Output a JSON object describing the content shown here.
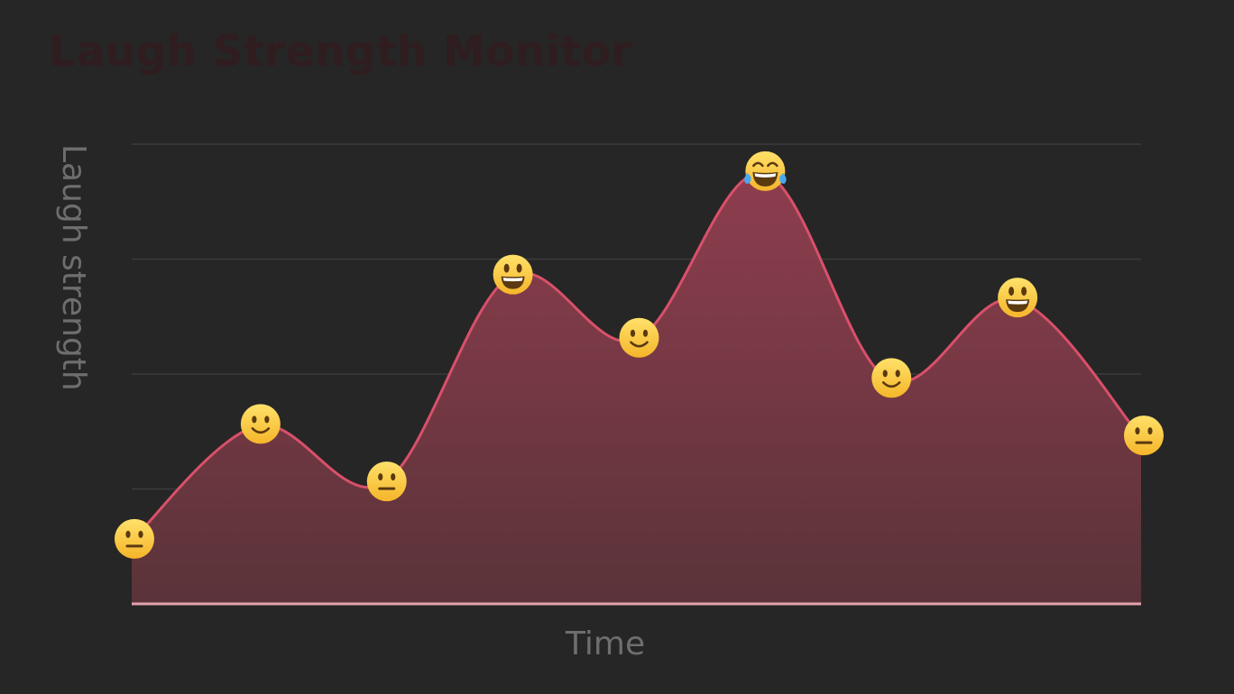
{
  "chart_data": {
    "type": "area",
    "title": "Laugh Strength Monitor",
    "xlabel": "Time",
    "ylabel": "Laugh strength",
    "ylim": [
      0,
      4
    ],
    "grid": true,
    "x": [
      0,
      1,
      2,
      3,
      4,
      5,
      6,
      7,
      8
    ],
    "values": [
      0.55,
      1.55,
      1.05,
      2.85,
      2.3,
      3.75,
      1.95,
      2.65,
      1.45
    ],
    "markers": [
      "neutral-face",
      "slightly-smiling-face",
      "neutral-face",
      "grinning-face-big-eyes",
      "slightly-smiling-face",
      "face-with-tears-of-joy",
      "slightly-smiling-face",
      "grinning-face-big-eyes",
      "neutral-face"
    ],
    "colors": {
      "line": "#d9506a",
      "fill_top": "#8e3d4e",
      "fill_bottom": "#5a3339",
      "grid": "#3b3b3b",
      "baseline": "#e2a1ad"
    }
  }
}
